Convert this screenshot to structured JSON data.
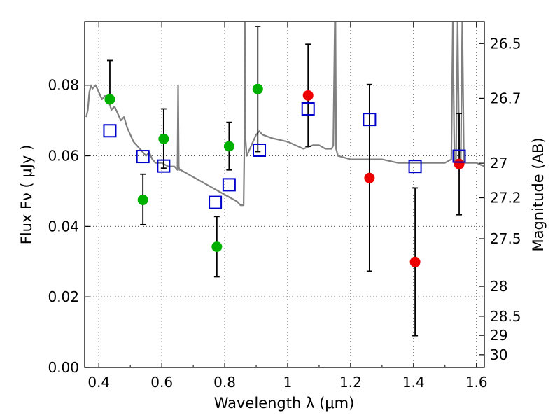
{
  "chart_data": {
    "type": "scatter",
    "title": "",
    "xlabel": "Wavelength  λ (μm)",
    "ylabel": "Flux  Fν  ( μJy )",
    "ylabel_right": "Magnitude (AB)",
    "xlim": [
      0.355,
      1.625
    ],
    "ylim": [
      0.0,
      0.098
    ],
    "grid": true,
    "x_ticks": [
      0.4,
      0.6,
      0.8,
      1.0,
      1.2,
      1.4,
      1.6
    ],
    "x_tick_labels": [
      "0.4",
      "0.6",
      "0.8",
      "1",
      "1.2",
      "1.4",
      "1.6"
    ],
    "y_ticks": [
      0.0,
      0.02,
      0.04,
      0.06,
      0.08
    ],
    "y_tick_labels": [
      "0.00",
      "0.02",
      "0.04",
      "0.06",
      "0.08"
    ],
    "right_ticks": [
      {
        "label": "26.5",
        "flux": 0.0918
      },
      {
        "label": "26.7",
        "flux": 0.0763
      },
      {
        "label": "27",
        "flux": 0.0579
      },
      {
        "label": "27.2",
        "flux": 0.0481
      },
      {
        "label": "27.5",
        "flux": 0.0365
      },
      {
        "label": "28",
        "flux": 0.023
      },
      {
        "label": "28.5",
        "flux": 0.0145
      },
      {
        "label": "29",
        "flux": 0.0091
      },
      {
        "label": "30",
        "flux": 0.0036
      }
    ],
    "series": [
      {
        "name": "model spectrum",
        "kind": "line",
        "color": "#808080",
        "x": [
          0.36,
          0.365,
          0.37,
          0.375,
          0.38,
          0.39,
          0.4,
          0.41,
          0.42,
          0.43,
          0.44,
          0.45,
          0.46,
          0.47,
          0.48,
          0.49,
          0.5,
          0.51,
          0.52,
          0.53,
          0.54,
          0.55,
          0.56,
          0.57,
          0.58,
          0.6,
          0.62,
          0.64,
          0.65,
          0.652,
          0.654,
          0.656,
          0.66,
          0.68,
          0.7,
          0.72,
          0.74,
          0.76,
          0.78,
          0.8,
          0.82,
          0.84,
          0.85,
          0.86,
          0.862,
          0.864,
          0.866,
          0.87,
          0.88,
          0.89,
          0.9,
          0.91,
          0.92,
          0.95,
          1.0,
          1.05,
          1.08,
          1.1,
          1.12,
          1.14,
          1.145,
          1.15,
          1.152,
          1.154,
          1.16,
          1.2,
          1.25,
          1.3,
          1.35,
          1.4,
          1.45,
          1.5,
          1.52,
          1.525,
          1.53,
          1.535,
          1.54,
          1.545,
          1.55,
          1.555,
          1.56,
          1.6,
          1.625
        ],
        "y": [
          0.071,
          0.073,
          0.078,
          0.08,
          0.079,
          0.08,
          0.078,
          0.076,
          0.077,
          0.076,
          0.073,
          0.074,
          0.072,
          0.07,
          0.071,
          0.068,
          0.066,
          0.064,
          0.063,
          0.062,
          0.061,
          0.06,
          0.061,
          0.059,
          0.058,
          0.058,
          0.057,
          0.057,
          0.056,
          0.08,
          0.057,
          0.056,
          0.056,
          0.055,
          0.054,
          0.053,
          0.052,
          0.051,
          0.05,
          0.049,
          0.048,
          0.047,
          0.046,
          0.046,
          0.06,
          0.098,
          0.065,
          0.06,
          0.062,
          0.064,
          0.066,
          0.067,
          0.066,
          0.065,
          0.064,
          0.062,
          0.063,
          0.063,
          0.062,
          0.062,
          0.063,
          0.098,
          0.098,
          0.062,
          0.06,
          0.059,
          0.059,
          0.059,
          0.058,
          0.058,
          0.058,
          0.058,
          0.059,
          0.098,
          0.058,
          0.058,
          0.098,
          0.062,
          0.058,
          0.098,
          0.058,
          0.058,
          0.057
        ]
      },
      {
        "name": "observed (green)",
        "kind": "point",
        "color": "#00b000",
        "points": [
          {
            "x": 0.435,
            "y": 0.076,
            "err_lo": null,
            "err_hi": 0.087
          },
          {
            "x": 0.54,
            "y": 0.0475,
            "err_lo": 0.0405,
            "err_hi": 0.0548
          },
          {
            "x": 0.606,
            "y": 0.0648,
            "err_lo": 0.0565,
            "err_hi": 0.0733
          },
          {
            "x": 0.775,
            "y": 0.0342,
            "err_lo": 0.0257,
            "err_hi": 0.0428
          },
          {
            "x": 0.814,
            "y": 0.0627,
            "err_lo": 0.056,
            "err_hi": 0.0695
          },
          {
            "x": 0.905,
            "y": 0.0789,
            "err_lo": 0.0612,
            "err_hi": 0.0966
          }
        ]
      },
      {
        "name": "observed (red)",
        "kind": "point",
        "color": "#ee0000",
        "points": [
          {
            "x": 1.065,
            "y": 0.0771,
            "err_lo": 0.0627,
            "err_hi": 0.0916
          },
          {
            "x": 1.26,
            "y": 0.0537,
            "err_lo": 0.0273,
            "err_hi": 0.0802
          },
          {
            "x": 1.405,
            "y": 0.0299,
            "err_lo": 0.009,
            "err_hi": 0.0509
          },
          {
            "x": 1.545,
            "y": 0.0577,
            "err_lo": 0.0433,
            "err_hi": 0.072
          }
        ]
      },
      {
        "name": "model photometry",
        "kind": "square",
        "color": "#0000cc",
        "points": [
          {
            "x": 0.435,
            "y": 0.0671
          },
          {
            "x": 0.54,
            "y": 0.0598
          },
          {
            "x": 0.606,
            "y": 0.0571
          },
          {
            "x": 0.77,
            "y": 0.0468
          },
          {
            "x": 0.814,
            "y": 0.0518
          },
          {
            "x": 0.91,
            "y": 0.0616
          },
          {
            "x": 1.065,
            "y": 0.0733
          },
          {
            "x": 1.26,
            "y": 0.0703
          },
          {
            "x": 1.405,
            "y": 0.057
          },
          {
            "x": 1.545,
            "y": 0.0599
          }
        ]
      }
    ]
  }
}
